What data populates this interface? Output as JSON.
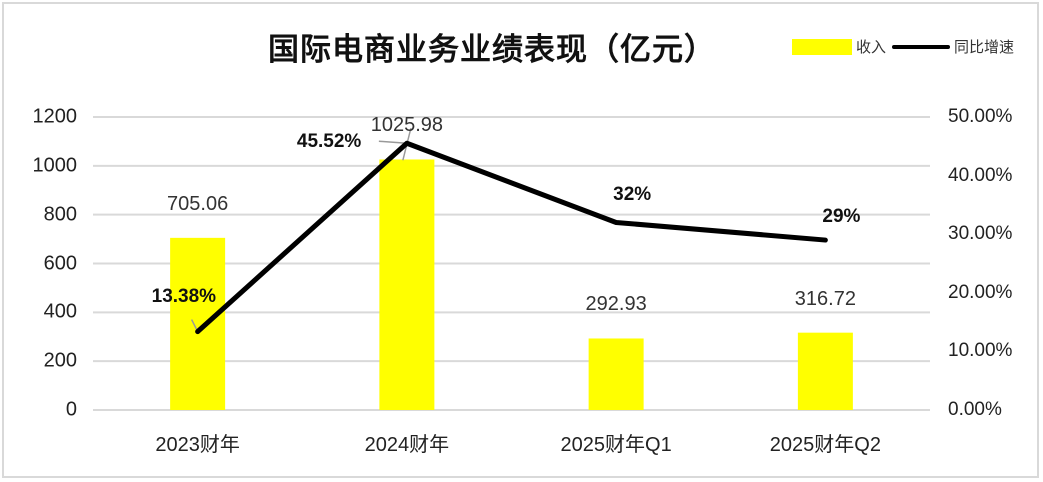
{
  "chart_data": {
    "type": "bar+line",
    "title": "国际电商业务业绩表现（亿元）",
    "categories": [
      "2023财年",
      "2024财年",
      "2025财年Q1",
      "2025财年Q2"
    ],
    "series": [
      {
        "name": "收入",
        "type": "bar",
        "axis": "left",
        "color": "#ffff00",
        "values": [
          705.06,
          1025.98,
          292.93,
          316.72
        ],
        "labels": [
          "705.06",
          "1025.98",
          "292.93",
          "316.72"
        ]
      },
      {
        "name": "同比增速",
        "type": "line",
        "axis": "right",
        "color": "#000000",
        "values": [
          13.38,
          45.52,
          32,
          29
        ],
        "labels": [
          "13.38%",
          "45.52%",
          "32%",
          "29%"
        ]
      }
    ],
    "y_left": {
      "ticks": [
        "0",
        "200",
        "400",
        "600",
        "800",
        "1000",
        "1200"
      ],
      "range": [
        0,
        1200
      ]
    },
    "y_right": {
      "ticks": [
        "0.00%",
        "10.00%",
        "20.00%",
        "30.00%",
        "40.00%",
        "50.00%"
      ],
      "range": [
        0,
        50
      ]
    },
    "xlabel": "",
    "ylabel": "",
    "grid": true,
    "legend_position": "top-right"
  },
  "legend": {
    "bar": "收入",
    "line": "同比增速"
  }
}
